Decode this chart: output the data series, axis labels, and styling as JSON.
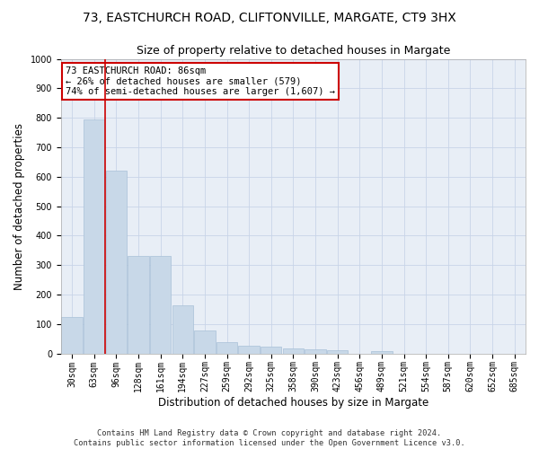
{
  "title1": "73, EASTCHURCH ROAD, CLIFTONVILLE, MARGATE, CT9 3HX",
  "title2": "Size of property relative to detached houses in Margate",
  "xlabel": "Distribution of detached houses by size in Margate",
  "ylabel": "Number of detached properties",
  "categories": [
    "30sqm",
    "63sqm",
    "96sqm",
    "128sqm",
    "161sqm",
    "194sqm",
    "227sqm",
    "259sqm",
    "292sqm",
    "325sqm",
    "358sqm",
    "390sqm",
    "423sqm",
    "456sqm",
    "489sqm",
    "521sqm",
    "554sqm",
    "587sqm",
    "620sqm",
    "652sqm",
    "685sqm"
  ],
  "values": [
    125,
    795,
    620,
    330,
    330,
    162,
    78,
    38,
    26,
    24,
    16,
    14,
    10,
    0,
    9,
    0,
    0,
    0,
    0,
    0,
    0
  ],
  "bar_color": "#c8d8e8",
  "bar_edge_color": "#a8c0d8",
  "property_line_x": 1.48,
  "annotation_text": "73 EASTCHURCH ROAD: 86sqm\n← 26% of detached houses are smaller (579)\n74% of semi-detached houses are larger (1,607) →",
  "annotation_box_color": "#ffffff",
  "annotation_box_edge_color": "#cc0000",
  "ylim": [
    0,
    1000
  ],
  "yticks": [
    0,
    100,
    200,
    300,
    400,
    500,
    600,
    700,
    800,
    900,
    1000
  ],
  "grid_color": "#c8d4e8",
  "bg_color": "#e8eef6",
  "footer_text": "Contains HM Land Registry data © Crown copyright and database right 2024.\nContains public sector information licensed under the Open Government Licence v3.0.",
  "title1_fontsize": 10,
  "title2_fontsize": 9,
  "xlabel_fontsize": 8.5,
  "ylabel_fontsize": 8.5,
  "tick_fontsize": 7,
  "annotation_fontsize": 7.5
}
